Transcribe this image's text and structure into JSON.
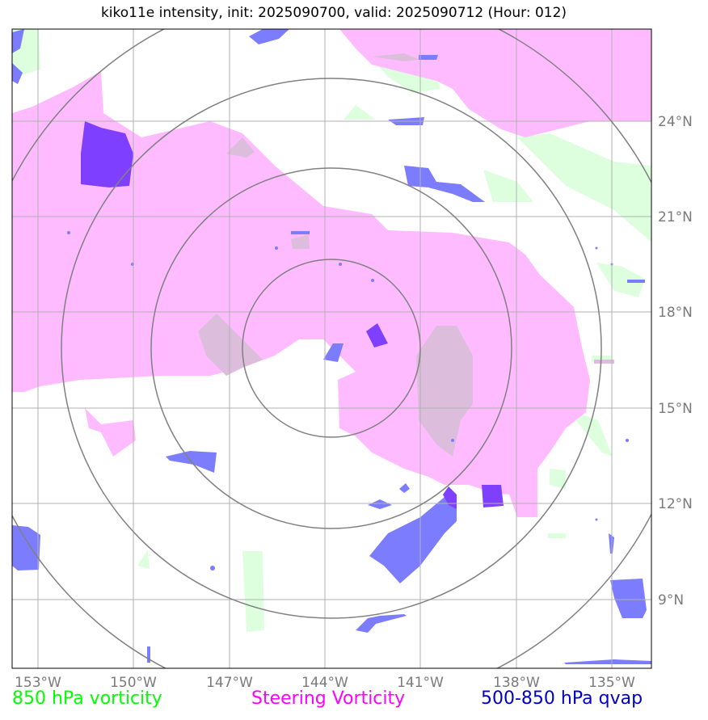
{
  "title": "kiko11e intensity, init: 2025090700, valid: 2025090712 (Hour: 012)",
  "lon_ticks": [
    "153°W",
    "150°W",
    "147°W",
    "144°W",
    "141°W",
    "138°W",
    "135°W"
  ],
  "lat_ticks": [
    "24°N",
    "21°N",
    "18°N",
    "15°N",
    "12°N",
    "9°N"
  ],
  "legend": {
    "vort850": {
      "label": "850 hPa vorticity",
      "color": "#00ff00"
    },
    "steering": {
      "label": "Steering Vorticity",
      "color": "#ff00ff"
    },
    "qvap": {
      "label": "500-850 hPa qvap",
      "color": "#0000cc"
    }
  },
  "fill_colors": {
    "steering": "#ffbbff",
    "vort850": "#ddffdd",
    "overlap": "#dcbedc",
    "qvap": "#7c7cff",
    "qvap_dark": "#7f3fff"
  },
  "storm_center": {
    "lon": "144°W",
    "lat": "17°N"
  },
  "range_rings_count": 4
}
